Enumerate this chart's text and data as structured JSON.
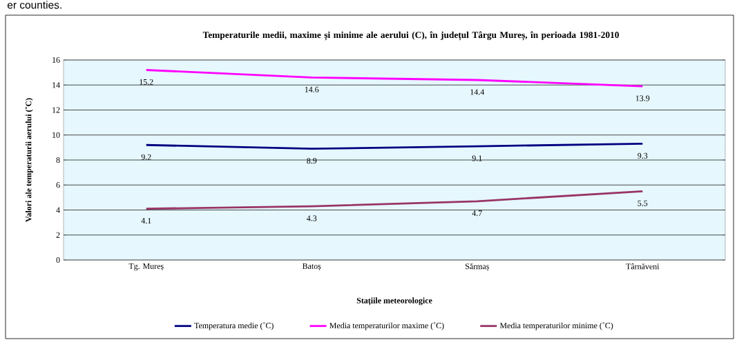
{
  "chart_data": {
    "type": "line",
    "title": "Temperaturile medii, maxime și minime ale aerului (C), în județul Târgu Mureș, în perioada 1981-2010",
    "xlabel": "Stațiile meteorologice",
    "ylabel": "Valori ale temperaturii aerului (˚C)",
    "annotations": [
      "er counties."
    ],
    "categories": [
      "Tg. Mureș",
      "Batoș",
      "Sărmaș",
      "Târnăveni"
    ],
    "series": [
      {
        "name": "Temperatura medie (˚C)",
        "color": "#000080",
        "values": [
          9.2,
          8.9,
          9.1,
          9.3
        ]
      },
      {
        "name": "Media temperaturilor maxime (˚C)",
        "color": "#ff00ff",
        "values": [
          15.2,
          14.6,
          14.4,
          13.9
        ]
      },
      {
        "name": "Media temperaturilor minime (˚C)",
        "color": "#993366",
        "values": [
          4.1,
          4.3,
          4.7,
          5.5
        ]
      }
    ],
    "ylim": [
      0,
      16
    ],
    "yticks": [
      0,
      2,
      4,
      6,
      8,
      10,
      12,
      14,
      16
    ],
    "grid": "y",
    "legend": "bottom",
    "marker": "none",
    "line_style": "solid",
    "data_labels": true
  }
}
